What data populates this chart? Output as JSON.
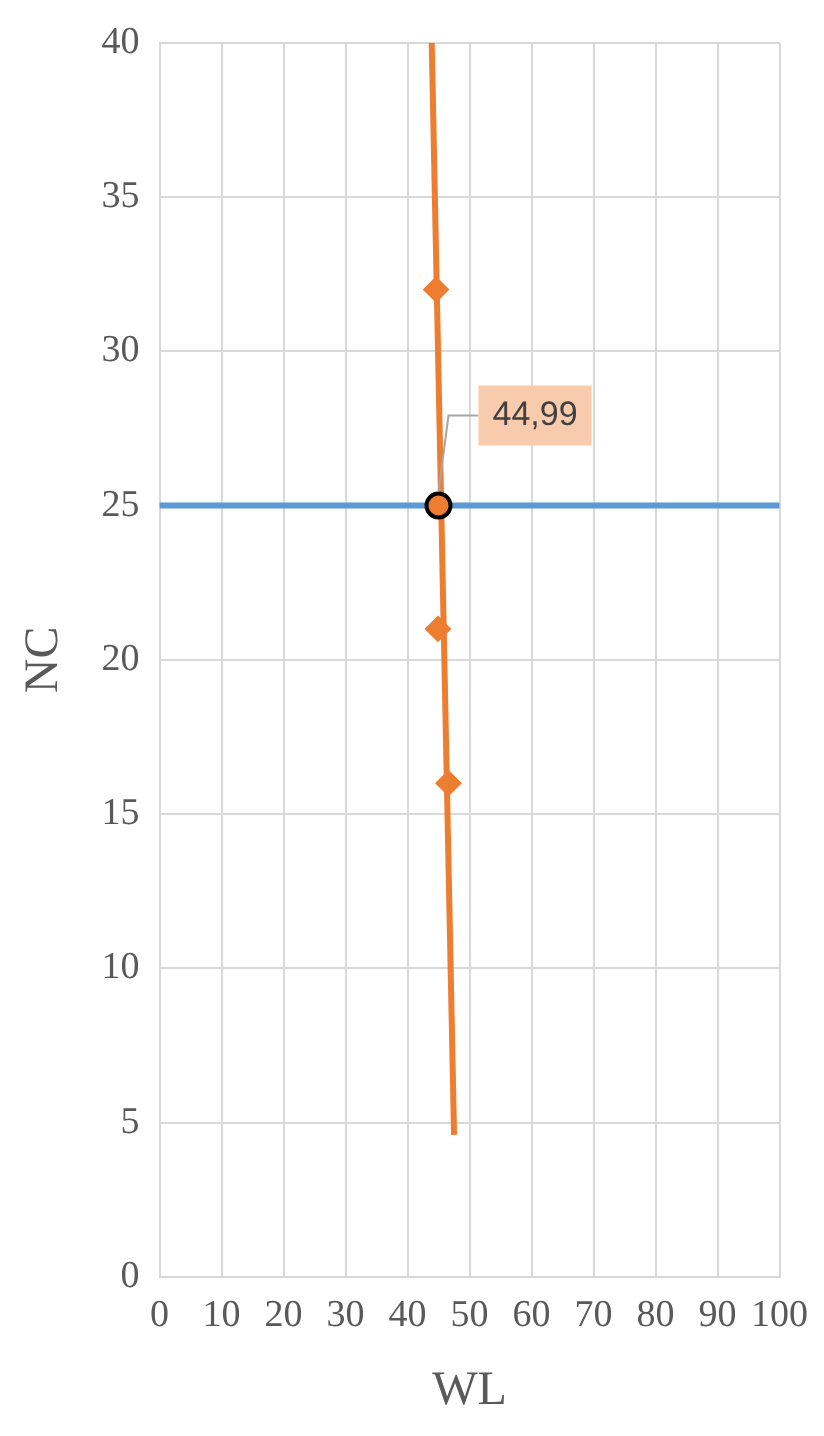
{
  "chart_data": {
    "type": "scatter",
    "xlabel": "WL",
    "ylabel": "NC",
    "xlim": [
      0,
      100
    ],
    "xticks": [
      0,
      10,
      20,
      30,
      40,
      50,
      60,
      70,
      80,
      90,
      100
    ],
    "ylim": [
      0,
      40
    ],
    "yticks": [
      0,
      5,
      10,
      15,
      20,
      25,
      30,
      35,
      40
    ],
    "grid": true,
    "legend": false,
    "series": [
      {
        "type": "line",
        "color": "#ed7d31",
        "x": [
          43.9,
          47.5
        ],
        "values": [
          40,
          4.6
        ],
        "marker": "none"
      },
      {
        "type": "scatter",
        "color": "#ed7d31",
        "x": [
          44.6,
          44.9,
          46.6
        ],
        "values": [
          32,
          21,
          16
        ],
        "marker": "diamond"
      },
      {
        "type": "scatter",
        "color": "#000000",
        "x": [
          44.99
        ],
        "values": [
          25
        ],
        "marker": "circle"
      }
    ],
    "ref_lines": [
      {
        "axis": "y",
        "value": 25,
        "color": "#5b9bd5"
      }
    ],
    "annotations": [
      {
        "text": "44,99",
        "x": 44.99,
        "y": 25
      }
    ]
  }
}
